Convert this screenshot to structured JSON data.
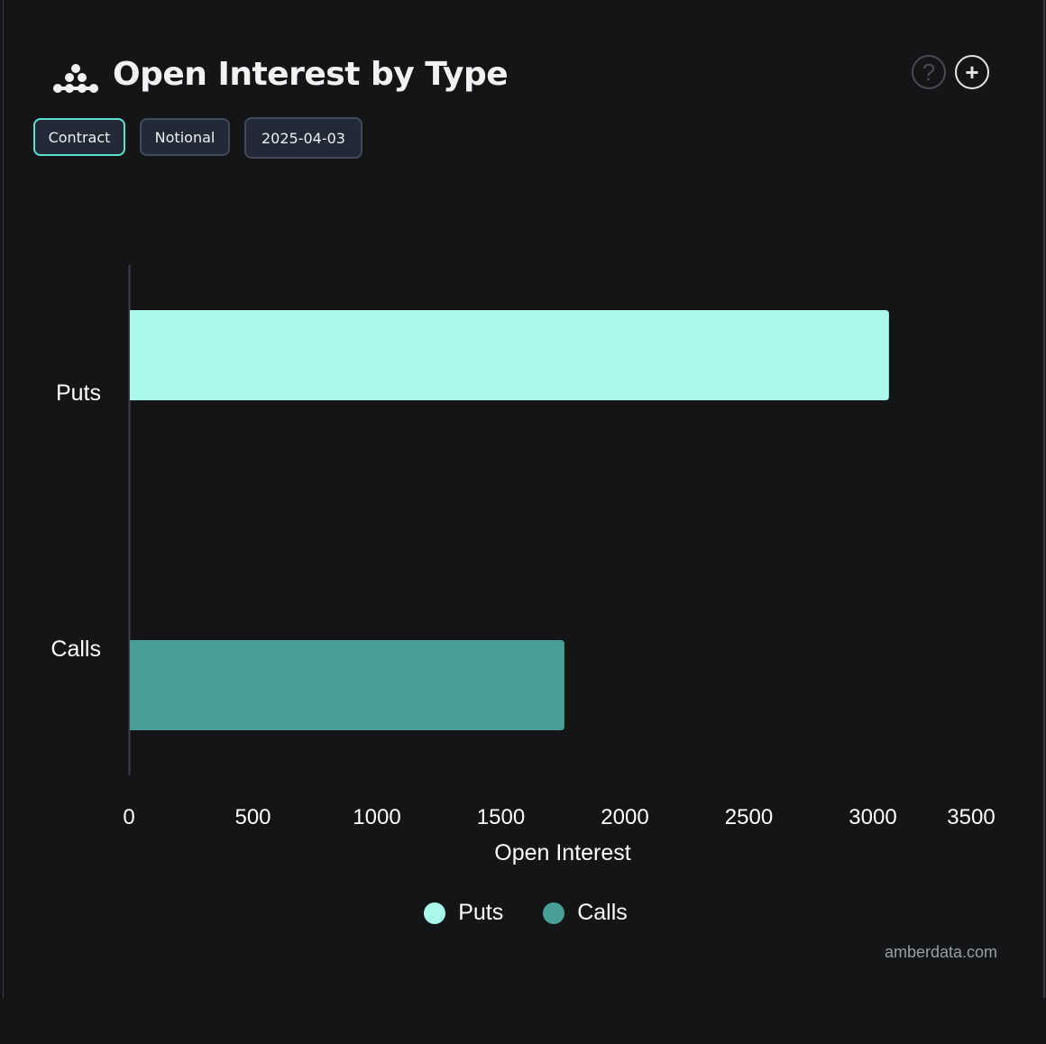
{
  "header": {
    "title": "Open Interest by Type",
    "logo_icon": "amberdata-logo-icon",
    "help_icon": "question-circle-icon",
    "add_icon": "plus-circle-icon"
  },
  "toolbar": {
    "buttons": [
      {
        "label": "Contract",
        "active": true
      },
      {
        "label": "Notional",
        "active": false
      },
      {
        "label": "2025-04-03",
        "active": false
      }
    ]
  },
  "chart_data": {
    "type": "bar",
    "orientation": "horizontal",
    "categories": [
      "Puts",
      "Calls"
    ],
    "series": [
      {
        "name": "Puts",
        "values": [
          3065,
          null
        ],
        "color": "#aafaec"
      },
      {
        "name": "Calls",
        "values": [
          null,
          1756
        ],
        "color": "#479f96"
      }
    ],
    "xlabel": "Open Interest",
    "ylabel": "",
    "xlim": [
      0,
      3500
    ],
    "xticks": [
      "0",
      "500",
      "1000",
      "1500",
      "2000",
      "2500",
      "3000",
      "3500"
    ],
    "grid": false,
    "legend": "bottom"
  },
  "footer": {
    "credit": "amberdata.com"
  }
}
